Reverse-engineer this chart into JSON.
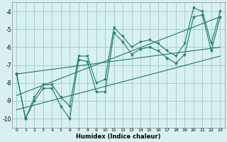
{
  "x_data": [
    0,
    1,
    2,
    3,
    4,
    5,
    6,
    7,
    8,
    9,
    10,
    11,
    12,
    13,
    14,
    15,
    16,
    17,
    18,
    19,
    20,
    21,
    22,
    23
  ],
  "y_main": [
    -7.5,
    -10.0,
    -9.0,
    -8.3,
    -8.3,
    -9.3,
    -10.0,
    -6.7,
    -6.8,
    -8.5,
    -8.5,
    -5.2,
    -5.7,
    -6.4,
    -6.1,
    -6.0,
    -6.2,
    -6.6,
    -6.9,
    -6.4,
    -4.3,
    -4.2,
    -6.2,
    -4.3
  ],
  "y_upper": [
    -7.5,
    -10.0,
    -8.8,
    -8.1,
    -8.1,
    -8.8,
    -9.3,
    -6.5,
    -6.5,
    -8.0,
    -7.8,
    -4.9,
    -5.4,
    -6.0,
    -5.7,
    -5.6,
    -5.8,
    -6.2,
    -6.5,
    -5.8,
    -3.8,
    -4.0,
    -5.8,
    -4.0
  ],
  "trend1_x": [
    0,
    23
  ],
  "trend1_y": [
    -7.5,
    -6.0
  ],
  "trend2_x": [
    0,
    23
  ],
  "trend2_y": [
    -9.5,
    -6.5
  ],
  "trend3_x": [
    0,
    23
  ],
  "trend3_y": [
    -8.7,
    -4.3
  ],
  "line_color": "#1a7a6e",
  "bg_color": "#d9f0f0",
  "grid_color": "#a0d0d0",
  "xlabel": "Humidex (Indice chaleur)",
  "xlim": [
    -0.5,
    23.5
  ],
  "ylim": [
    -10.5,
    -3.5
  ],
  "yticks": [
    -10,
    -9,
    -8,
    -7,
    -6,
    -5,
    -4
  ],
  "xticks": [
    0,
    1,
    2,
    3,
    4,
    5,
    6,
    7,
    8,
    9,
    10,
    11,
    12,
    13,
    14,
    15,
    16,
    17,
    18,
    19,
    20,
    21,
    22,
    23
  ],
  "xtick_labels": [
    "0",
    "1",
    "2",
    "3",
    "4",
    "5",
    "6",
    "7",
    "8",
    "9",
    "10",
    "11",
    "12",
    "13",
    "14",
    "15",
    "16",
    "17",
    "18",
    "19",
    "20",
    "21",
    "22",
    "23"
  ]
}
